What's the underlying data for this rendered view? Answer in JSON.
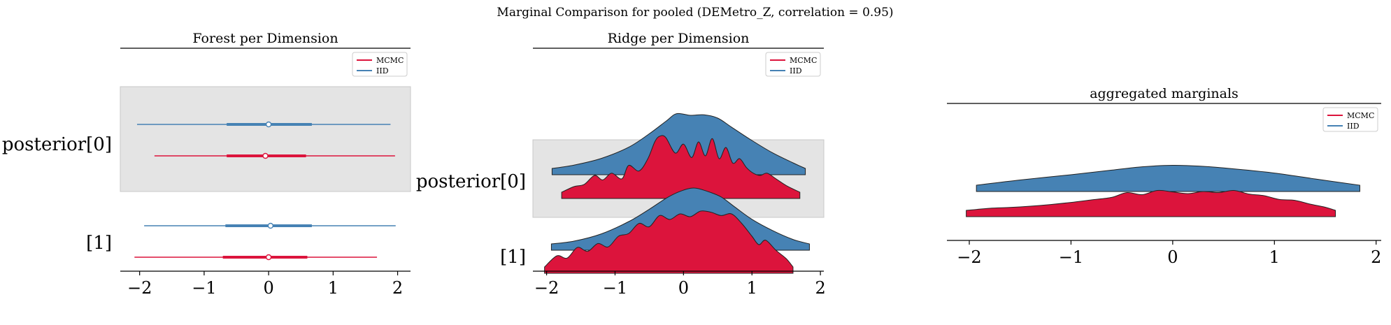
{
  "suptitle": "Marginal Comparison for pooled (DEMetro_Z, correlation = 0.95)",
  "colors": {
    "mcmc": "#dc143c",
    "iid": "#4682b4",
    "band": "#e4e4e4",
    "axis": "#000000"
  },
  "chart_data": [
    {
      "type": "forest",
      "title": "Forest per Dimension",
      "xlim": [
        -2.3,
        2.2
      ],
      "xticks": [
        -2,
        -1,
        0,
        1,
        2
      ],
      "xtick_labels": [
        "−2",
        "−1",
        "0",
        "1",
        "2"
      ],
      "dimension_labels": [
        "posterior[0]",
        "[1]"
      ],
      "legend": {
        "placement": "upper right",
        "entries": [
          "MCMC",
          "IID"
        ]
      },
      "series": [
        {
          "name": "MCMC",
          "dimension": "posterior[0]",
          "hdi_low": -1.77,
          "hdi_high": 1.96,
          "iqr_low": -0.65,
          "iqr_high": 0.58,
          "median": -0.05
        },
        {
          "name": "IID",
          "dimension": "posterior[0]",
          "hdi_low": -2.04,
          "hdi_high": 1.89,
          "iqr_low": -0.65,
          "iqr_high": 0.67,
          "median": 0.0
        },
        {
          "name": "MCMC",
          "dimension": "[1]",
          "hdi_low": -2.08,
          "hdi_high": 1.68,
          "iqr_low": -0.71,
          "iqr_high": 0.6,
          "median": 0.0
        },
        {
          "name": "IID",
          "dimension": "[1]",
          "hdi_low": -1.93,
          "hdi_high": 1.97,
          "iqr_low": -0.67,
          "iqr_high": 0.67,
          "median": 0.03
        }
      ]
    },
    {
      "type": "ridge",
      "title": "Ridge per Dimension",
      "xlim": [
        -2.2,
        2.05
      ],
      "xticks": [
        -2,
        -1,
        0,
        1,
        2
      ],
      "xtick_labels": [
        "−2",
        "−1",
        "0",
        "1",
        "2"
      ],
      "dimension_labels": [
        "posterior[0]",
        "[1]"
      ],
      "legend": {
        "placement": "upper right",
        "entries": [
          "MCMC",
          "IID"
        ]
      },
      "series": [
        {
          "name": "IID",
          "dimension": "posterior[0]",
          "x": [
            -1.92,
            -1.6,
            -1.2,
            -0.8,
            -0.5,
            -0.25,
            -0.1,
            0.1,
            0.3,
            0.5,
            0.7,
            1.0,
            1.3,
            1.6,
            1.78
          ],
          "density": [
            0.0,
            0.06,
            0.18,
            0.38,
            0.62,
            0.85,
            0.98,
            0.95,
            0.96,
            0.9,
            0.74,
            0.5,
            0.28,
            0.1,
            0.0
          ]
        },
        {
          "name": "MCMC",
          "dimension": "posterior[0]",
          "x": [
            -1.78,
            -1.6,
            -1.45,
            -1.3,
            -1.18,
            -1.05,
            -0.9,
            -0.8,
            -0.65,
            -0.52,
            -0.42,
            -0.35,
            -0.26,
            -0.12,
            0.0,
            0.12,
            0.22,
            0.32,
            0.42,
            0.52,
            0.62,
            0.72,
            0.82,
            0.92,
            1.02,
            1.12,
            1.22,
            1.35,
            1.5,
            1.7
          ],
          "density": [
            0.0,
            0.1,
            0.14,
            0.3,
            0.22,
            0.34,
            0.24,
            0.48,
            0.38,
            0.6,
            0.9,
            1.0,
            0.98,
            0.7,
            0.86,
            0.62,
            0.9,
            0.65,
            0.96,
            0.6,
            0.8,
            0.52,
            0.6,
            0.44,
            0.34,
            0.3,
            0.34,
            0.24,
            0.12,
            0.0
          ]
        },
        {
          "name": "IID",
          "dimension": "[1]",
          "x": [
            -1.93,
            -1.6,
            -1.2,
            -0.8,
            -0.5,
            -0.25,
            -0.05,
            0.15,
            0.35,
            0.55,
            0.75,
            1.0,
            1.3,
            1.6,
            1.84
          ],
          "density": [
            0.0,
            0.05,
            0.18,
            0.4,
            0.62,
            0.82,
            0.94,
            1.0,
            0.94,
            0.84,
            0.66,
            0.44,
            0.24,
            0.08,
            0.0
          ]
        },
        {
          "name": "MCMC",
          "dimension": "[1]",
          "x": [
            -2.03,
            -1.85,
            -1.7,
            -1.55,
            -1.4,
            -1.25,
            -1.1,
            -0.95,
            -0.8,
            -0.65,
            -0.5,
            -0.35,
            -0.2,
            -0.05,
            0.1,
            0.25,
            0.4,
            0.55,
            0.7,
            0.85,
            1.0,
            1.1,
            1.2,
            1.35,
            1.5,
            1.6
          ],
          "density": [
            0.0,
            0.2,
            0.16,
            0.35,
            0.28,
            0.42,
            0.36,
            0.55,
            0.6,
            0.78,
            0.72,
            0.92,
            0.85,
            0.95,
            0.9,
            1.0,
            0.98,
            0.92,
            0.95,
            0.78,
            0.55,
            0.4,
            0.48,
            0.3,
            0.15,
            0.0
          ]
        }
      ]
    },
    {
      "type": "ridge",
      "title": "aggregated marginals",
      "xlim": [
        -2.22,
        2.05
      ],
      "xticks": [
        -2,
        -1,
        0,
        1,
        2
      ],
      "xtick_labels": [
        "−2",
        "−1",
        "0",
        "1",
        "2"
      ],
      "legend": {
        "placement": "upper right",
        "entries": [
          "MCMC",
          "IID"
        ]
      },
      "series": [
        {
          "name": "IID",
          "x": [
            -1.93,
            -1.5,
            -1.0,
            -0.6,
            -0.3,
            0.0,
            0.3,
            0.6,
            1.0,
            1.4,
            1.84
          ],
          "density": [
            0.0,
            0.25,
            0.5,
            0.72,
            0.88,
            0.95,
            0.9,
            0.78,
            0.58,
            0.3,
            0.0
          ]
        },
        {
          "name": "MCMC",
          "x": [
            -2.03,
            -1.8,
            -1.6,
            -1.4,
            -1.2,
            -1.0,
            -0.8,
            -0.6,
            -0.45,
            -0.3,
            -0.15,
            0.0,
            0.15,
            0.3,
            0.45,
            0.6,
            0.75,
            0.9,
            1.05,
            1.2,
            1.35,
            1.5,
            1.6
          ],
          "density": [
            0.0,
            0.1,
            0.14,
            0.2,
            0.28,
            0.38,
            0.5,
            0.62,
            0.85,
            0.75,
            0.95,
            0.88,
            0.8,
            0.9,
            0.85,
            0.95,
            0.78,
            0.7,
            0.52,
            0.48,
            0.3,
            0.15,
            0.0
          ]
        }
      ]
    }
  ]
}
